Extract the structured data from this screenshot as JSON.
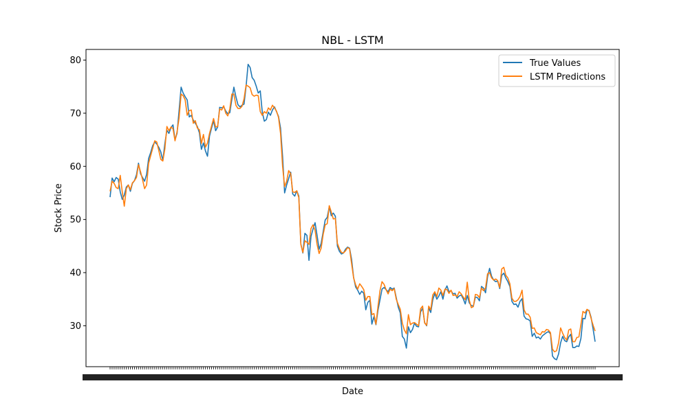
{
  "chart_data": {
    "type": "line",
    "title": "NBL - LSTM",
    "xlabel": "Date",
    "ylabel": "Stock Price",
    "ylim": [
      22.3,
      82.0
    ],
    "yticks": [
      30,
      40,
      50,
      60,
      70,
      80
    ],
    "x_tick_labels_legible": false,
    "grid": false,
    "legend_position": "top-right",
    "series": [
      {
        "name": "True Values",
        "color": "#1f77b4",
        "values": [
          54.2,
          57.8,
          57.1,
          57.9,
          57.6,
          55.2,
          53.8,
          54.6,
          56.1,
          56.5,
          55.3,
          56.8,
          57.3,
          58.4,
          60.6,
          58.6,
          57.9,
          57.2,
          58.5,
          61.5,
          62.6,
          63.9,
          64.6,
          64.2,
          63.6,
          62.7,
          61.1,
          64.3,
          66.8,
          66.2,
          67.3,
          67.8,
          65.0,
          66.2,
          70.5,
          74.9,
          73.8,
          73.1,
          72.5,
          69.3,
          69.6,
          68.7,
          68.1,
          67.5,
          66.3,
          63.2,
          64.4,
          62.9,
          61.9,
          65.7,
          67.2,
          68.6,
          66.7,
          67.4,
          71.1,
          71.0,
          71.2,
          70.4,
          69.9,
          70.1,
          72.6,
          74.9,
          73.1,
          71.6,
          71.2,
          71.5,
          71.7,
          75.0,
          79.2,
          78.6,
          76.7,
          76.2,
          75.1,
          73.8,
          74.2,
          70.2,
          68.5,
          68.8,
          70.2,
          69.6,
          70.6,
          71.2,
          70.3,
          69.4,
          67.2,
          61.9,
          55.0,
          56.5,
          57.7,
          58.9,
          54.8,
          54.4,
          55.4,
          54.4,
          45.4,
          43.7,
          47.4,
          47.0,
          42.3,
          46.8,
          48.2,
          49.4,
          47.0,
          44.4,
          45.5,
          47.7,
          49.9,
          50.4,
          52.4,
          50.7,
          51.2,
          50.6,
          45.0,
          44.0,
          43.5,
          43.7,
          44.4,
          44.8,
          44.6,
          42.5,
          39.1,
          37.3,
          36.7,
          35.9,
          36.5,
          36.1,
          33.0,
          34.4,
          34.8,
          30.3,
          31.7,
          30.2,
          32.9,
          34.9,
          36.9,
          37.2,
          36.8,
          36.4,
          37.2,
          36.9,
          37.1,
          35.3,
          33.5,
          32.4,
          28.0,
          27.5,
          25.8,
          29.8,
          28.7,
          29.3,
          30.5,
          29.9,
          29.8,
          32.6,
          33.3,
          30.6,
          30.0,
          33.4,
          32.5,
          34.9,
          36.1,
          35.0,
          35.6,
          36.4,
          35.0,
          36.7,
          37.5,
          36.4,
          36.6,
          36.0,
          36.1,
          35.2,
          35.6,
          35.8,
          35.1,
          34.1,
          35.7,
          34.3,
          33.8,
          33.7,
          35.4,
          35.3,
          34.7,
          37.4,
          37.1,
          36.2,
          39.2,
          40.8,
          39.3,
          38.6,
          38.3,
          38.4,
          37.0,
          39.5,
          39.9,
          39.0,
          38.3,
          37.4,
          34.6,
          34.0,
          34.1,
          33.5,
          34.6,
          35.1,
          31.8,
          31.3,
          31.2,
          30.9,
          28.0,
          28.6,
          27.7,
          27.9,
          27.5,
          28.1,
          28.4,
          28.7,
          28.9,
          28.5,
          24.3,
          23.8,
          23.6,
          24.7,
          26.8,
          28.0,
          27.2,
          27.0,
          27.9,
          28.4,
          25.9,
          25.9,
          26.2,
          26.1,
          27.6,
          31.4,
          31.3,
          33.0,
          32.9,
          31.6,
          29.4,
          27.0
        ]
      },
      {
        "name": "LSTM Predictions",
        "color": "#ff7f0e",
        "values": [
          55.3,
          57.2,
          56.8,
          56.0,
          55.8,
          58.3,
          55.2,
          52.5,
          55.8,
          56.5,
          55.6,
          56.9,
          57.3,
          57.9,
          60.3,
          59.0,
          57.5,
          55.8,
          56.5,
          60.6,
          62.0,
          63.4,
          64.8,
          64.6,
          63.0,
          61.3,
          61.0,
          63.3,
          67.5,
          66.7,
          67.4,
          67.1,
          64.8,
          66.5,
          69.1,
          73.6,
          73.3,
          72.5,
          69.6,
          70.5,
          70.6,
          68.1,
          68.6,
          67.2,
          66.9,
          64.3,
          66.0,
          63.6,
          64.4,
          66.2,
          67.6,
          69.0,
          67.4,
          67.5,
          70.8,
          70.6,
          71.4,
          70.0,
          69.5,
          70.8,
          73.6,
          73.6,
          71.5,
          70.9,
          70.9,
          71.3,
          72.7,
          75.3,
          75.1,
          74.8,
          73.5,
          73.2,
          73.4,
          73.3,
          70.3,
          69.6,
          70.3,
          70.0,
          71.0,
          70.6,
          71.5,
          71.0,
          70.4,
          69.2,
          66.2,
          60.0,
          56.2,
          57.2,
          59.2,
          58.6,
          55.2,
          55.1,
          55.4,
          54.1,
          45.3,
          43.8,
          46.0,
          45.7,
          45.3,
          48.3,
          49.0,
          48.0,
          45.3,
          43.6,
          44.6,
          47.2,
          49.0,
          49.2,
          52.6,
          51.4,
          50.1,
          50.2,
          45.5,
          44.5,
          43.8,
          43.7,
          44.1,
          44.7,
          44.5,
          41.7,
          39.0,
          37.7,
          36.9,
          37.9,
          37.4,
          36.8,
          34.8,
          35.5,
          35.5,
          32.1,
          32.3,
          30.3,
          33.6,
          36.6,
          38.3,
          37.8,
          36.8,
          36.0,
          36.9,
          36.6,
          37.0,
          35.0,
          34.0,
          33.1,
          30.5,
          29.2,
          28.5,
          32.1,
          30.2,
          30.5,
          30.6,
          30.3,
          30.0,
          33.2,
          33.7,
          30.5,
          30.1,
          33.7,
          33.0,
          35.8,
          36.4,
          35.5,
          37.1,
          36.7,
          35.7,
          36.9,
          36.8,
          36.1,
          36.7,
          35.7,
          35.8,
          35.5,
          36.4,
          36.0,
          35.4,
          34.9,
          38.2,
          34.8,
          33.4,
          33.6,
          35.9,
          35.8,
          35.3,
          37.1,
          36.6,
          37.1,
          39.8,
          40.0,
          39.0,
          38.6,
          38.8,
          38.5,
          37.2,
          40.7,
          41.0,
          39.5,
          39.0,
          37.9,
          35.2,
          34.6,
          34.6,
          34.9,
          35.5,
          36.7,
          33.0,
          32.2,
          32.2,
          31.6,
          29.5,
          29.6,
          28.7,
          28.5,
          28.3,
          28.9,
          28.8,
          29.3,
          29.2,
          28.7,
          25.6,
          25.1,
          25.3,
          26.8,
          29.6,
          28.6,
          27.8,
          27.3,
          29.2,
          29.4,
          27.0,
          27.0,
          27.8,
          27.9,
          30.2,
          32.7,
          32.4,
          33.1,
          32.8,
          31.4,
          30.1,
          29.0
        ]
      }
    ]
  }
}
